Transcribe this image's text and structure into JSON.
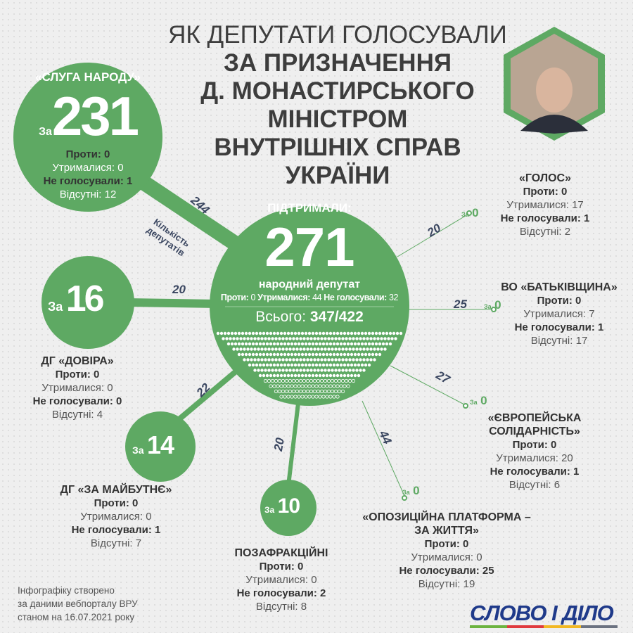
{
  "title": [
    "ЯК ДЕПУТАТИ ГОЛОСУВАЛИ",
    "ЗА ПРИЗНАЧЕННЯ",
    "Д. МОНАСТИРСЬКОГО",
    "МІНІСТРОМ",
    "ВНУТРІШНІХ СПРАВ",
    "УКРАЇНИ"
  ],
  "colors": {
    "green": "#5ea963",
    "dark": "#3a4660"
  },
  "center": {
    "supported_label": "ПІДТРИМАЛИ:",
    "supported": "271",
    "unit": "народний депутат",
    "against_label": "Проти:",
    "against": "0",
    "abstained_label": "Утрималися:",
    "abstained": "44",
    "not_voted_label": "Не голосували:",
    "not_voted": "32",
    "total_label": "Всього:",
    "total": "347/422"
  },
  "za": "За",
  "legend_label": "Кількість депутатів",
  "parties": [
    {
      "name": "«СЛУГА НАРОДУ»",
      "for": "231",
      "members": "244",
      "against": "Проти: 0",
      "abstained": "Утрималися: 0",
      "not_voted": "Не голосували: 1",
      "absent": "Відсутні: 12"
    },
    {
      "name": "ДГ «ДОВІРА»",
      "for": "16",
      "members": "20",
      "against": "Проти: 0",
      "abstained": "Утрималися: 0",
      "not_voted": "Не голосували: 0",
      "absent": "Відсутні: 4"
    },
    {
      "name": "ДГ «ЗА МАЙБУТНЄ»",
      "for": "14",
      "members": "22",
      "against": "Проти: 0",
      "abstained": "Утрималися: 0",
      "not_voted": "Не голосували: 1",
      "absent": "Відсутні: 7"
    },
    {
      "name": "ПОЗАФРАКЦІЙНІ",
      "for": "10",
      "members": "20",
      "against": "Проти: 0",
      "abstained": "Утрималися: 0",
      "not_voted": "Не голосували: 2",
      "absent": "Відсутні: 8"
    },
    {
      "name": "«ОПОЗИЦІЙНА ПЛАТФОРМА – ЗА ЖИТТЯ»",
      "for": "0",
      "members": "44",
      "against": "Проти: 0",
      "abstained": "Утрималися: 0",
      "not_voted": "Не голосували: 25",
      "absent": "Відсутні: 19"
    },
    {
      "name": "«ЄВРОПЕЙСЬКА СОЛІДАРНІСТЬ»",
      "for": "0",
      "members": "27",
      "against": "Проти: 0",
      "abstained": "Утрималися: 20",
      "not_voted": "Не голосували: 1",
      "absent": "Відсутні: 6"
    },
    {
      "name": "ВО «БАТЬКІВЩИНА»",
      "for": "0",
      "members": "25",
      "against": "Проти: 0",
      "abstained": "Утрималися: 7",
      "not_voted": "Не голосували: 1",
      "absent": "Відсутні: 17"
    },
    {
      "name": "«ГОЛОС»",
      "for": "0",
      "members": "20",
      "against": "Проти: 0",
      "abstained": "Утрималися: 17",
      "not_voted": "Не голосували: 1",
      "absent": "Відсутні: 2"
    }
  ],
  "footer": {
    "source": [
      "Інфографіку створено",
      "за даними вебпорталу ВРУ",
      "станом на 16.07.2021 року"
    ],
    "logo": "СЛОВО І ДІЛО"
  }
}
